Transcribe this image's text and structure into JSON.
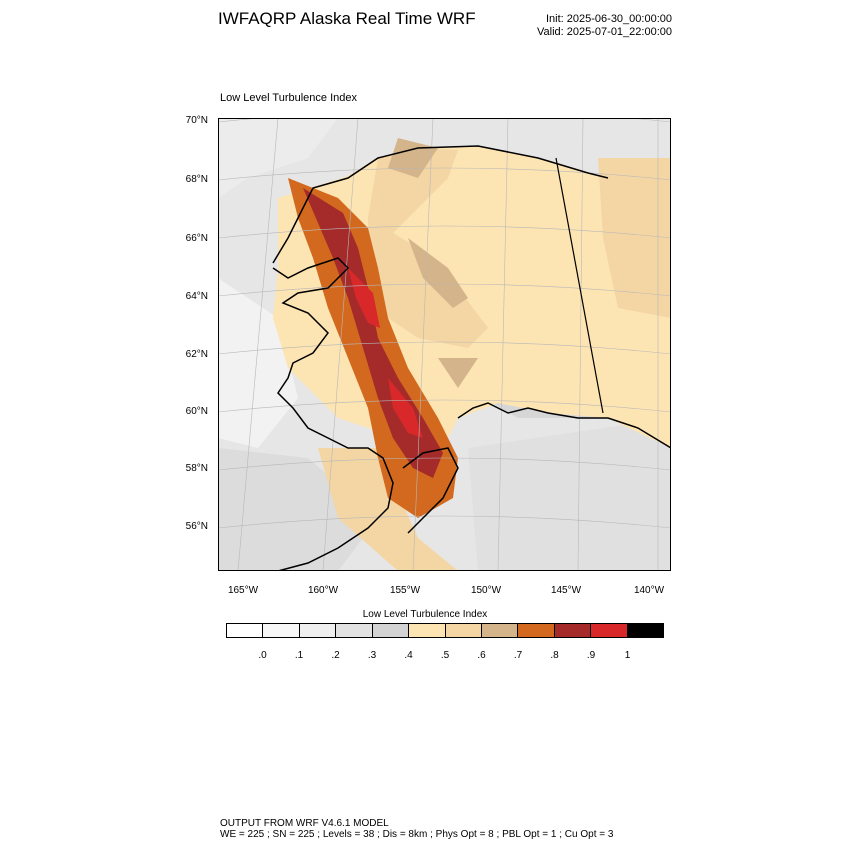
{
  "header": {
    "title": "IWFAQRP Alaska Real Time WRF",
    "init": "Init: 2025-06-30_00:00:00",
    "valid": "Valid: 2025-07-01_22:00:00"
  },
  "map": {
    "subtitle": "Low Level Turbulence Index",
    "lat_ticks": [
      "70°N",
      "68°N",
      "66°N",
      "64°N",
      "62°N",
      "60°N",
      "58°N",
      "56°N"
    ],
    "lon_ticks": [
      "165°W",
      "160°W",
      "155°W",
      "150°W",
      "145°W",
      "140°W"
    ]
  },
  "colorbar": {
    "title": "Low Level Turbulence Index",
    "colors": [
      "#ffffff",
      "#f7f7f7",
      "#efefef",
      "#e2e2e2",
      "#d3d3d3",
      "#fde4b3",
      "#f4d6a4",
      "#d4b48a",
      "#d2691e",
      "#a52a2a",
      "#d8282a",
      "#000000"
    ],
    "labels": [
      ".0",
      ".1",
      ".2",
      ".3",
      ".4",
      ".5",
      ".6",
      ".7",
      ".8",
      ".9",
      "1"
    ]
  },
  "footer": {
    "line1": "OUTPUT FROM WRF V4.6.1 MODEL",
    "line2": "WE = 225 ; SN = 225 ; Levels = 38 ; Dis = 8km ; Phys Opt = 8 ; PBL Opt = 1 ; Cu Opt = 3"
  }
}
